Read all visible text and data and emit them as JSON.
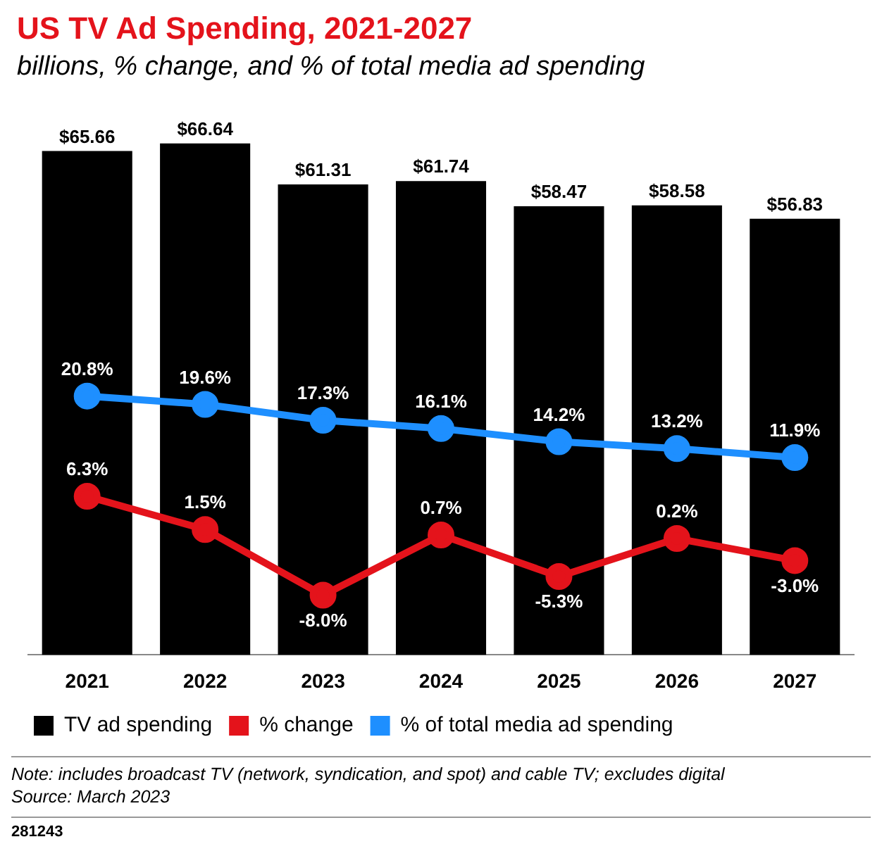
{
  "chart_data": {
    "type": "bar",
    "title": "US TV Ad Spending, 2021-2027",
    "subtitle": "billions, % change, and % of total media ad spending",
    "categories": [
      "2021",
      "2022",
      "2023",
      "2024",
      "2025",
      "2026",
      "2027"
    ],
    "series": [
      {
        "name": "TV ad spending",
        "color": "#000000",
        "values": [
          65.66,
          66.64,
          61.31,
          61.74,
          58.47,
          58.58,
          56.83
        ],
        "value_labels": [
          "$65.66",
          "$66.64",
          "$61.31",
          "$61.74",
          "$58.47",
          "$58.58",
          "$56.83"
        ]
      },
      {
        "name": "% change",
        "type": "line",
        "axis": "y2",
        "color": "#e4131b",
        "values": [
          6.3,
          1.5,
          -8.0,
          0.7,
          -5.3,
          0.2,
          -3.0
        ],
        "value_labels": [
          "6.3%",
          "1.5%",
          "-8.0%",
          "0.7%",
          "-5.3%",
          "0.2%",
          "-3.0%"
        ]
      },
      {
        "name": "% of total media ad spending",
        "type": "line",
        "axis": "y2",
        "color": "#1e8fff",
        "values": [
          20.8,
          19.6,
          17.3,
          16.1,
          14.2,
          13.2,
          11.9
        ],
        "value_labels": [
          "20.8%",
          "19.6%",
          "17.3%",
          "16.1%",
          "14.2%",
          "13.2%",
          "11.9%"
        ]
      }
    ],
    "tick_labels": "x",
    "marker": "circle",
    "legend": "bottom",
    "grid": false,
    "annotations": [
      "Note: includes broadcast TV (network, syndication, and spot) and cable TV; excludes digital",
      "Source: March 2023",
      "281243"
    ]
  }
}
